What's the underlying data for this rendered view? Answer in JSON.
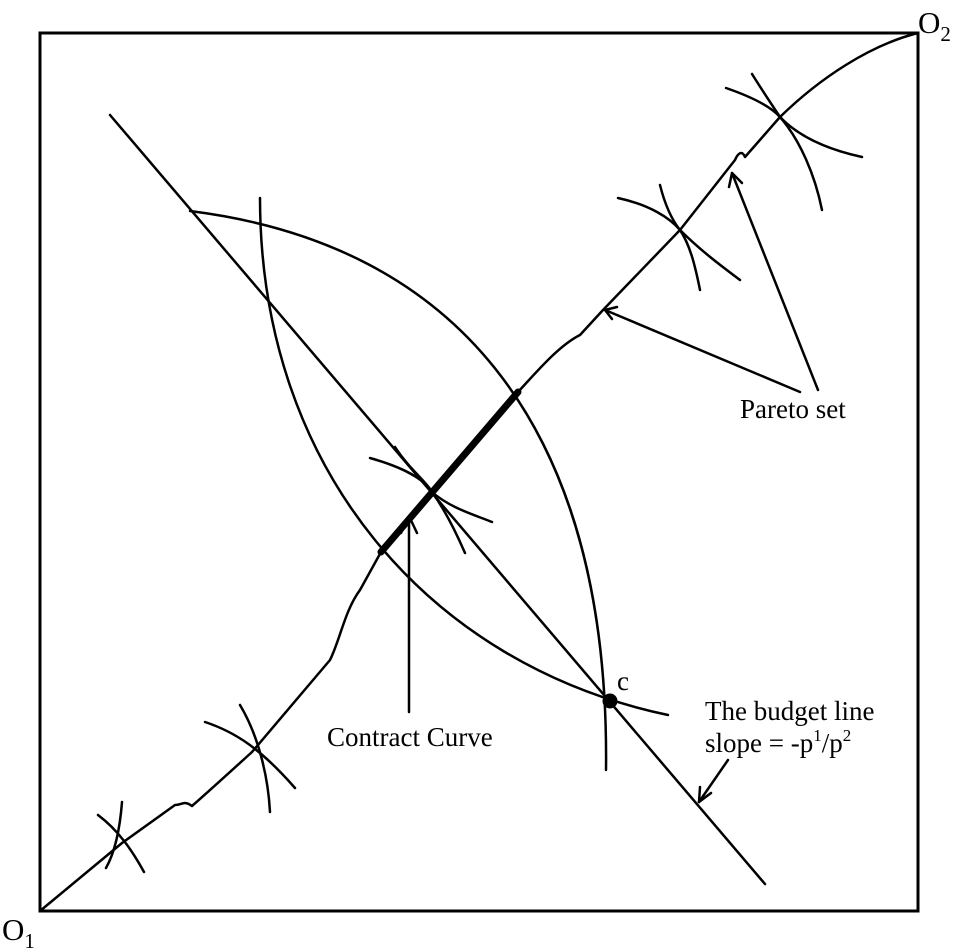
{
  "origins": {
    "o1": {
      "letter": "O",
      "index": "1"
    },
    "o2": {
      "letter": "O",
      "index": "2"
    }
  },
  "point_label": "c",
  "labels": {
    "contract_curve": "Contract Curve",
    "pareto_set": "Pareto set",
    "budget_line_1": "The budget line",
    "budget_line_2_prefix": "slope = -p",
    "budget_line_2_sup1": "1",
    "budget_line_2_mid": "/p",
    "budget_line_2_sup2": "2"
  }
}
